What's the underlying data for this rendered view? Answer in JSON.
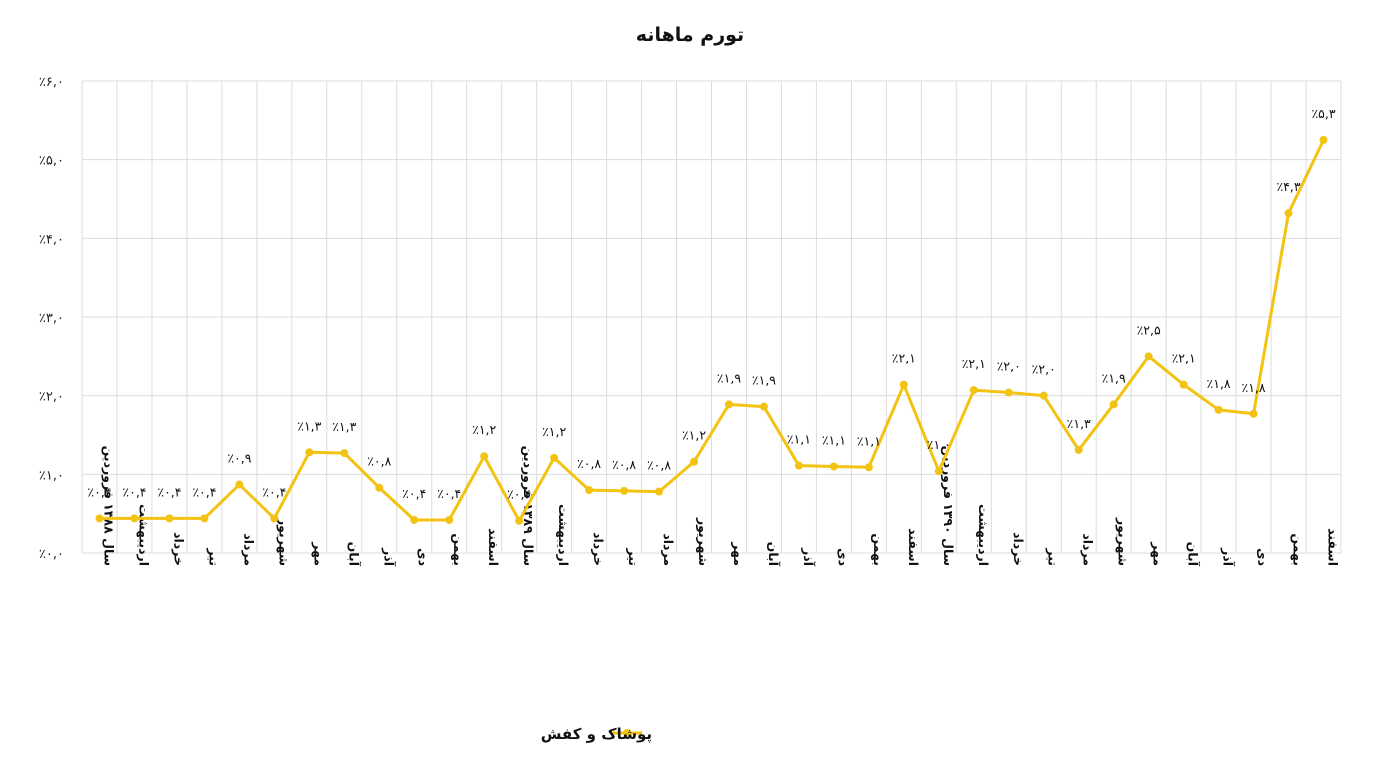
{
  "chart_data": {
    "type": "line",
    "title": "تورم ماهانه",
    "ylim": [
      0,
      6
    ],
    "y_ticks": [
      "٪۰,۰",
      "٪۱,۰",
      "٪۲,۰",
      "٪۳,۰",
      "٪۴,۰",
      "٪۵,۰",
      "٪۶,۰"
    ],
    "y_tick_values": [
      0,
      1,
      2,
      3,
      4,
      5,
      6
    ],
    "grid": true,
    "legend_position": "bottom",
    "categories": [
      "سال ۱۳۸۸ فروردین",
      "اردیبهشت",
      "خرداد",
      "تیر",
      "مرداد",
      "شهریور",
      "مهر",
      "آبان",
      "آذر",
      "دی",
      "بهمن",
      "اسفند",
      "سال ۱۳۸۹ فروردین",
      "اردیبهشت",
      "خرداد",
      "تیر",
      "مرداد",
      "شهریور",
      "مهر",
      "آبان",
      "آذر",
      "دی",
      "بهمن",
      "اسفند",
      "سال ۱۳۹۰ فروردین",
      "اردیبهشت",
      "خرداد",
      "تیر",
      "مرداد",
      "شهریور",
      "مهر",
      "آبان",
      "آذر",
      "دی",
      "بهمن",
      "اسفند"
    ],
    "series": [
      {
        "name": "پوشاک و کفش",
        "color": "#F2C312",
        "values": [
          0.44,
          0.44,
          0.44,
          0.44,
          0.87,
          0.44,
          1.28,
          1.27,
          0.83,
          0.42,
          0.42,
          1.23,
          0.41,
          1.21,
          0.8,
          0.79,
          0.78,
          1.16,
          1.89,
          1.86,
          1.11,
          1.1,
          1.09,
          2.14,
          1.04,
          2.07,
          2.04,
          2.0,
          1.31,
          1.89,
          2.5,
          2.14,
          1.82,
          1.77,
          4.32,
          5.25
        ],
        "labels": [
          "٪۰,۴",
          "٪۰,۴",
          "٪۰,۴",
          "٪۰,۴",
          "٪۰,۹",
          "٪۰,۴",
          "٪۱,۳",
          "٪۱,۳",
          "٪۰,۸",
          "٪۰,۴",
          "٪۰,۴",
          "٪۱,۲",
          "٪۰,۴",
          "٪۱,۲",
          "٪۰,۸",
          "٪۰,۸",
          "٪۰,۸",
          "٪۱,۲",
          "٪۱,۹",
          "٪۱,۹",
          "٪۱,۱",
          "٪۱,۱",
          "٪۱,۱",
          "٪۲,۱",
          "٪۱,۰",
          "٪۲,۱",
          "٪۲,۰",
          "٪۲,۰",
          "٪۱,۳",
          "٪۱,۹",
          "٪۲,۵",
          "٪۲,۱",
          "٪۱,۸",
          "٪۱,۸",
          "٪۴,۳",
          "٪۵,۳"
        ]
      }
    ]
  }
}
